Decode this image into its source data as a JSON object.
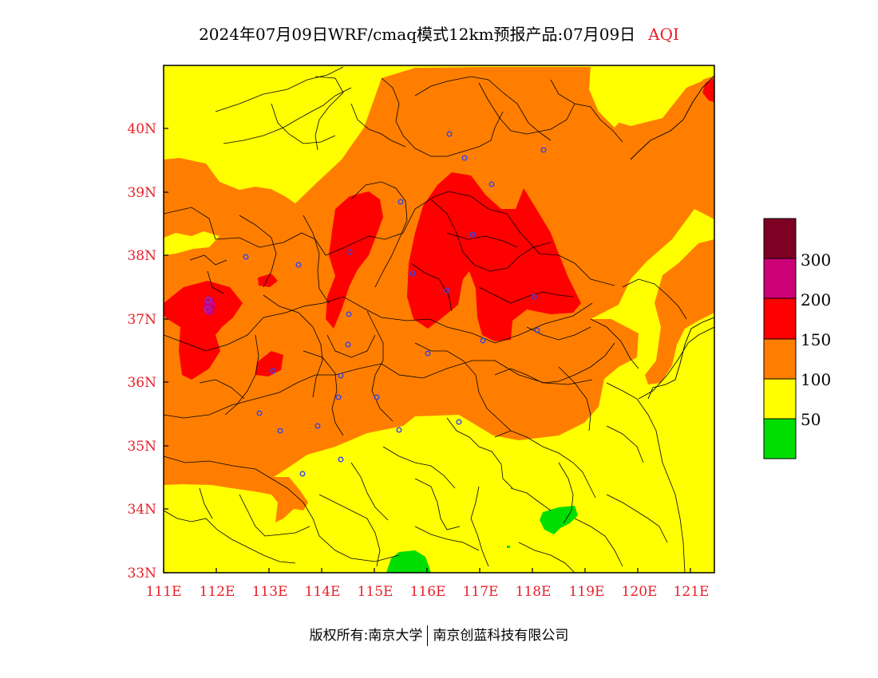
{
  "title": {
    "text": "2024年07月09日WRF/cmaq模式12km预报产品:07月09日",
    "tag": "AQI"
  },
  "axes": {
    "lon_ticks": [
      "111E",
      "112E",
      "113E",
      "114E",
      "115E",
      "116E",
      "117E",
      "118E",
      "119E",
      "120E",
      "121E"
    ],
    "lat_ticks": [
      "33N",
      "34N",
      "35N",
      "36N",
      "37N",
      "38N",
      "39N",
      "40N"
    ]
  },
  "legend": {
    "labels": [
      "50",
      "100",
      "150",
      "200",
      "300"
    ],
    "colors": [
      "#00dd00",
      "#ffff00",
      "#ff7e00",
      "#ff0000",
      "#cc0077",
      "#7e0023"
    ]
  },
  "footer": {
    "left": "版权所有:南京大学",
    "right": "南京创蓝科技有限公司"
  },
  "palette": {
    "good": "#00dd00",
    "moderate": "#ffff00",
    "usg": "#ff7e00",
    "unhealthy": "#ff0000",
    "very_unhealthy": "#cc0077",
    "hazardous": "#7e0023",
    "station": "#3344ee"
  }
}
